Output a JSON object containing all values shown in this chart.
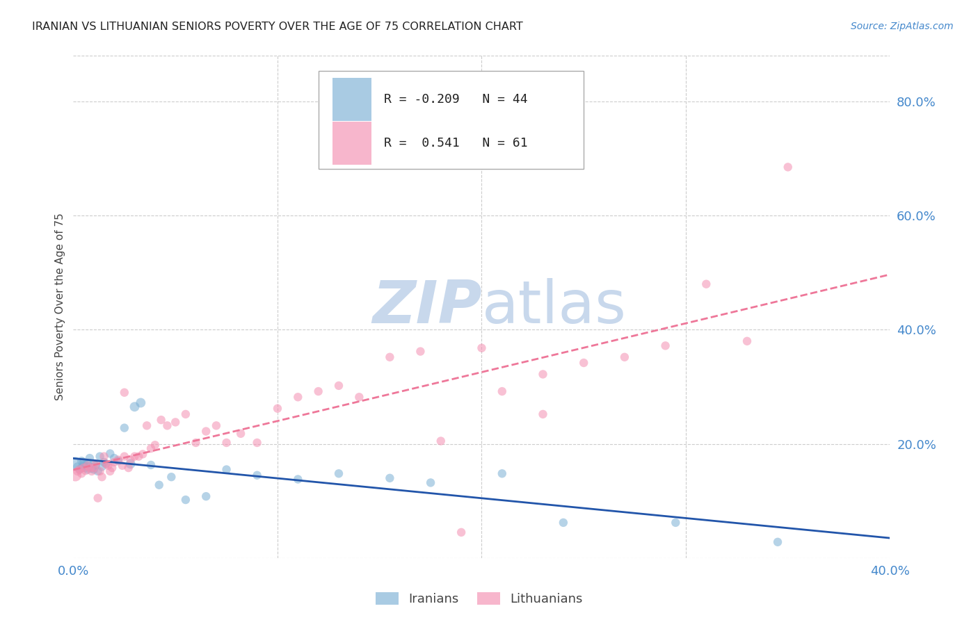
{
  "title": "IRANIAN VS LITHUANIAN SENIORS POVERTY OVER THE AGE OF 75 CORRELATION CHART",
  "source": "Source: ZipAtlas.com",
  "ylabel": "Seniors Poverty Over the Age of 75",
  "legend_iranian": "Iranians",
  "legend_lithuanian": "Lithuanians",
  "iranian_R": -0.209,
  "iranian_N": 44,
  "lithuanian_R": 0.541,
  "lithuanian_N": 61,
  "iranian_color": "#7BAFD4",
  "lithuanian_color": "#F48FB1",
  "iranian_line_color": "#2255AA",
  "lithuanian_line_color": "#EE7799",
  "title_color": "#222222",
  "axis_label_color": "#444444",
  "tick_color": "#4488CC",
  "grid_color": "#CCCCCC",
  "background_color": "#FFFFFF",
  "watermark_color": "#C8D8EC",
  "xlim": [
    0.0,
    0.4
  ],
  "ylim": [
    0.0,
    0.88
  ],
  "y_ticks_right": [
    0.0,
    0.2,
    0.4,
    0.6,
    0.8
  ],
  "y_tick_labels_right": [
    "",
    "20.0%",
    "40.0%",
    "60.0%",
    "80.0%"
  ],
  "iranian_x": [
    0.001,
    0.002,
    0.003,
    0.004,
    0.004,
    0.005,
    0.005,
    0.006,
    0.006,
    0.007,
    0.007,
    0.008,
    0.008,
    0.009,
    0.01,
    0.01,
    0.011,
    0.012,
    0.013,
    0.014,
    0.015,
    0.016,
    0.018,
    0.02,
    0.022,
    0.025,
    0.028,
    0.03,
    0.033,
    0.038,
    0.042,
    0.048,
    0.055,
    0.065,
    0.075,
    0.09,
    0.11,
    0.13,
    0.155,
    0.175,
    0.21,
    0.24,
    0.295,
    0.345
  ],
  "iranian_y": [
    0.165,
    0.16,
    0.155,
    0.17,
    0.158,
    0.162,
    0.168,
    0.163,
    0.158,
    0.155,
    0.165,
    0.175,
    0.16,
    0.158,
    0.165,
    0.155,
    0.162,
    0.152,
    0.178,
    0.16,
    0.168,
    0.165,
    0.183,
    0.175,
    0.17,
    0.228,
    0.165,
    0.265,
    0.272,
    0.163,
    0.128,
    0.142,
    0.102,
    0.108,
    0.155,
    0.145,
    0.138,
    0.148,
    0.14,
    0.132,
    0.148,
    0.062,
    0.062,
    0.028
  ],
  "iranian_size": [
    200,
    80,
    80,
    80,
    80,
    100,
    80,
    80,
    80,
    80,
    80,
    80,
    80,
    100,
    80,
    80,
    80,
    80,
    80,
    80,
    80,
    80,
    80,
    80,
    80,
    80,
    100,
    100,
    100,
    80,
    80,
    80,
    80,
    80,
    80,
    80,
    80,
    80,
    80,
    80,
    80,
    80,
    80,
    80
  ],
  "lithuanian_x": [
    0.001,
    0.002,
    0.003,
    0.004,
    0.005,
    0.006,
    0.007,
    0.008,
    0.009,
    0.01,
    0.011,
    0.012,
    0.013,
    0.014,
    0.015,
    0.016,
    0.017,
    0.018,
    0.019,
    0.02,
    0.022,
    0.024,
    0.025,
    0.027,
    0.028,
    0.03,
    0.032,
    0.034,
    0.036,
    0.038,
    0.04,
    0.043,
    0.046,
    0.05,
    0.055,
    0.06,
    0.065,
    0.07,
    0.075,
    0.082,
    0.09,
    0.1,
    0.11,
    0.12,
    0.13,
    0.14,
    0.155,
    0.17,
    0.19,
    0.21,
    0.23,
    0.25,
    0.27,
    0.29,
    0.31,
    0.33,
    0.18,
    0.2,
    0.025,
    0.35,
    0.23
  ],
  "lithuanian_y": [
    0.145,
    0.152,
    0.155,
    0.148,
    0.158,
    0.153,
    0.162,
    0.158,
    0.152,
    0.158,
    0.165,
    0.105,
    0.152,
    0.142,
    0.178,
    0.165,
    0.162,
    0.152,
    0.158,
    0.168,
    0.172,
    0.162,
    0.178,
    0.158,
    0.172,
    0.178,
    0.178,
    0.182,
    0.232,
    0.192,
    0.198,
    0.242,
    0.232,
    0.238,
    0.252,
    0.202,
    0.222,
    0.232,
    0.202,
    0.218,
    0.202,
    0.262,
    0.282,
    0.292,
    0.302,
    0.282,
    0.352,
    0.362,
    0.045,
    0.292,
    0.322,
    0.342,
    0.352,
    0.372,
    0.48,
    0.38,
    0.205,
    0.368,
    0.29,
    0.685,
    0.252
  ],
  "lithuanian_size": [
    160,
    80,
    80,
    80,
    80,
    80,
    80,
    80,
    80,
    80,
    80,
    80,
    80,
    80,
    80,
    80,
    80,
    80,
    80,
    80,
    80,
    80,
    80,
    80,
    80,
    80,
    80,
    80,
    80,
    80,
    80,
    80,
    80,
    80,
    80,
    80,
    80,
    80,
    80,
    80,
    80,
    80,
    80,
    80,
    80,
    80,
    80,
    80,
    80,
    80,
    80,
    80,
    80,
    80,
    80,
    80,
    80,
    80,
    80,
    80,
    80
  ]
}
